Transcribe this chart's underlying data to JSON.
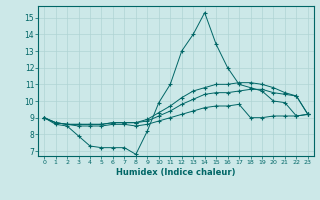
{
  "xlabel": "Humidex (Indice chaleur)",
  "background_color": "#cce8e8",
  "grid_color": "#b0d4d4",
  "line_color": "#006666",
  "xlim": [
    -0.5,
    23.5
  ],
  "ylim": [
    6.7,
    15.7
  ],
  "yticks": [
    7,
    8,
    9,
    10,
    11,
    12,
    13,
    14,
    15
  ],
  "xticks": [
    0,
    1,
    2,
    3,
    4,
    5,
    6,
    7,
    8,
    9,
    10,
    11,
    12,
    13,
    14,
    15,
    16,
    17,
    18,
    19,
    20,
    21,
    22,
    23
  ],
  "series": [
    [
      9.0,
      8.6,
      8.5,
      7.9,
      7.3,
      7.2,
      7.2,
      7.2,
      6.8,
      8.2,
      9.9,
      11.0,
      13.0,
      14.0,
      15.3,
      13.4,
      12.0,
      11.0,
      10.8,
      10.6,
      10.0,
      9.9,
      9.1,
      9.2
    ],
    [
      9.0,
      8.7,
      8.6,
      8.5,
      8.5,
      8.5,
      8.6,
      8.6,
      8.5,
      8.6,
      8.8,
      9.0,
      9.2,
      9.4,
      9.6,
      9.7,
      9.7,
      9.8,
      9.0,
      9.0,
      9.1,
      9.1,
      9.1,
      9.2
    ],
    [
      9.0,
      8.7,
      8.6,
      8.6,
      8.6,
      8.6,
      8.7,
      8.7,
      8.7,
      8.8,
      9.1,
      9.4,
      9.8,
      10.1,
      10.4,
      10.5,
      10.5,
      10.6,
      10.7,
      10.7,
      10.5,
      10.4,
      10.3,
      9.2
    ],
    [
      9.0,
      8.7,
      8.6,
      8.6,
      8.6,
      8.6,
      8.7,
      8.7,
      8.7,
      8.9,
      9.3,
      9.7,
      10.2,
      10.6,
      10.8,
      11.0,
      11.0,
      11.1,
      11.1,
      11.0,
      10.8,
      10.5,
      10.3,
      9.2
    ]
  ]
}
